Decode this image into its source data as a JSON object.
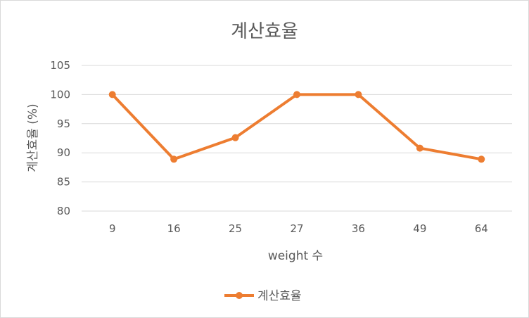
{
  "chart_data": {
    "type": "line",
    "title": "계산효율",
    "xlabel": "weight 수",
    "ylabel": "계산효율 (%)",
    "categories": [
      "9",
      "16",
      "25",
      "27",
      "36",
      "49",
      "64"
    ],
    "series": [
      {
        "name": "계산효율",
        "values": [
          100,
          88.9,
          92.6,
          100,
          100,
          90.8,
          88.9
        ],
        "color": "#ed7d31"
      }
    ],
    "ylim": [
      80,
      105
    ],
    "yticks": [
      "80",
      "85",
      "90",
      "95",
      "100",
      "105"
    ],
    "grid": true,
    "legend_position": "bottom"
  }
}
